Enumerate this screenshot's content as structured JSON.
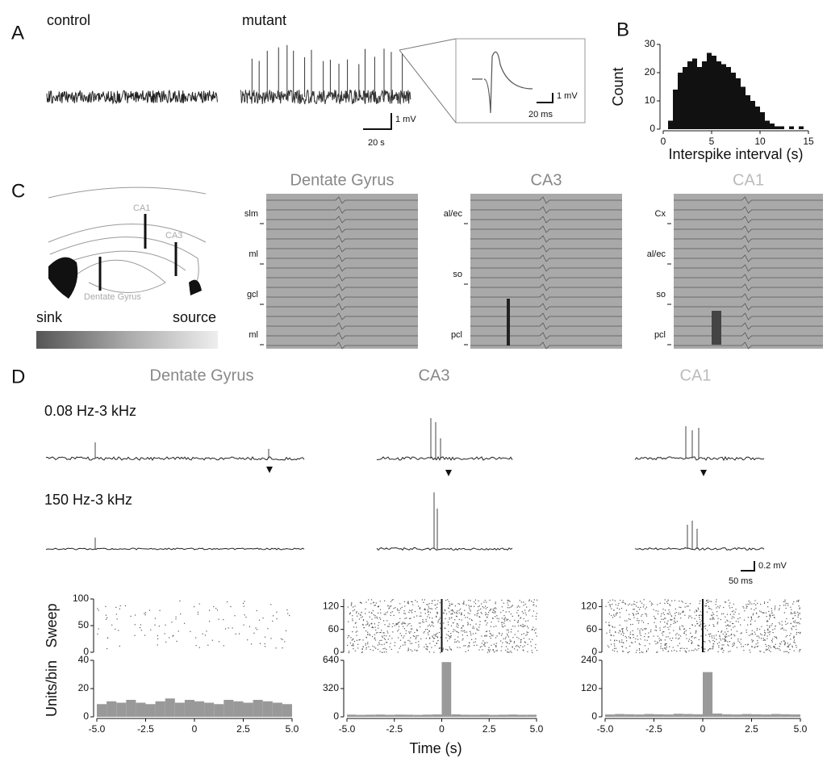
{
  "figure": {
    "A": {
      "label": "A",
      "control": "control",
      "mutant": "mutant",
      "scale_y": "1 mV",
      "scale_x": "20 s",
      "inset_y": "1 mV",
      "inset_x": "20 ms"
    },
    "B": {
      "label": "B"
    },
    "C": {
      "label": "C",
      "regions": [
        "CA1",
        "CA3",
        "Dentate Gyrus"
      ],
      "sink": "sink",
      "source": "source",
      "panels": [
        {
          "title": "Dentate Gyrus",
          "layers": [
            "slm",
            "ml",
            "gcl",
            "ml"
          ]
        },
        {
          "title": "CA3",
          "layers": [
            "al/ec",
            "so",
            "pcl"
          ]
        },
        {
          "title": "CA1",
          "layers": [
            "Cx",
            "al/ec",
            "so",
            "pcl"
          ]
        }
      ]
    },
    "D": {
      "label": "D",
      "titles": [
        "Dentate Gyrus",
        "CA3",
        "CA1"
      ],
      "band1": "0.08 Hz-3 kHz",
      "band2": "150 Hz-3 kHz",
      "scale_y": "0.2 mV",
      "scale_x": "50 ms",
      "xlabel": "Time (s)"
    }
  },
  "chart_data": [
    {
      "type": "histogram",
      "xlabel": "Interspike interval (s)",
      "ylabel": "Count",
      "color": "#111111",
      "bins": [
        0,
        0.5,
        1,
        1.5,
        2,
        2.5,
        3,
        3.5,
        4,
        4.5,
        5,
        5.5,
        6,
        6.5,
        7,
        7.5,
        8,
        8.5,
        9,
        9.5,
        10,
        10.5,
        11,
        11.5,
        12,
        12.5,
        13,
        13.5,
        14,
        14.5,
        15
      ],
      "values": [
        0,
        3,
        14,
        20,
        22,
        24,
        25,
        22,
        24,
        27,
        26,
        24,
        23,
        22,
        20,
        18,
        15,
        12,
        10,
        8,
        6,
        3,
        2,
        1,
        1,
        0,
        1,
        0,
        1,
        0
      ],
      "xlim": [
        0,
        15
      ],
      "xticks": [
        0,
        5,
        10,
        15
      ],
      "ylim": [
        0,
        30
      ],
      "yticks": [
        0,
        10,
        20,
        30
      ]
    },
    {
      "type": "raster",
      "ylabel": "Sweep",
      "xlim": [
        -5,
        5
      ],
      "ylim": [
        0,
        100
      ],
      "yticks": [
        0,
        50,
        100
      ]
    },
    {
      "type": "raster",
      "xlim": [
        -5,
        5
      ],
      "ylim": [
        0,
        140
      ],
      "yticks": [
        0,
        60,
        120
      ]
    },
    {
      "type": "raster",
      "xlim": [
        -5,
        5
      ],
      "ylim": [
        0,
        140
      ],
      "yticks": [
        0,
        60,
        120
      ]
    },
    {
      "type": "histogram",
      "ylabel": "Units/bin",
      "color": "#999999",
      "bins": [
        -5,
        -4.5,
        -4,
        -3.5,
        -3,
        -2.5,
        -2,
        -1.5,
        -1,
        -0.5,
        0,
        0.5,
        1,
        1.5,
        2,
        2.5,
        3,
        3.5,
        4,
        4.5,
        5
      ],
      "values": [
        9,
        11,
        10,
        12,
        10,
        9,
        11,
        13,
        10,
        12,
        11,
        10,
        9,
        12,
        11,
        10,
        12,
        11,
        10,
        9
      ],
      "xlim": [
        -5,
        5
      ],
      "xticks": [
        {
          "value": -5,
          "label": "-5.0"
        },
        -2.5,
        0,
        2.5,
        {
          "value": 5,
          "label": "5.0"
        }
      ],
      "ylim": [
        0,
        40
      ],
      "yticks": [
        0,
        20,
        40
      ]
    },
    {
      "type": "histogram",
      "color": "#999999",
      "bins": [
        -5,
        -4.5,
        -4,
        -3.5,
        -3,
        -2.5,
        -2,
        -1.5,
        -1,
        -0.5,
        0,
        0.5,
        1,
        1.5,
        2,
        2.5,
        3,
        3.5,
        4,
        4.5,
        5
      ],
      "values": [
        25,
        22,
        24,
        26,
        23,
        25,
        24,
        22,
        25,
        27,
        620,
        28,
        24,
        23,
        25,
        22,
        24,
        26,
        23,
        24
      ],
      "xlim": [
        -5,
        5
      ],
      "xticks": [
        {
          "value": -5,
          "label": "-5.0"
        },
        -2.5,
        0,
        2.5,
        {
          "value": 5,
          "label": "5.0"
        }
      ],
      "ylim": [
        0,
        640
      ],
      "yticks": [
        0,
        320,
        640
      ]
    },
    {
      "type": "histogram",
      "color": "#999999",
      "bins": [
        -5,
        -4.5,
        -4,
        -3.5,
        -3,
        -2.5,
        -2,
        -1.5,
        -1,
        -0.5,
        0,
        0.5,
        1,
        1.5,
        2,
        2.5,
        3,
        3.5,
        4,
        4.5,
        5
      ],
      "values": [
        10,
        12,
        11,
        10,
        12,
        11,
        10,
        13,
        12,
        11,
        190,
        14,
        11,
        10,
        12,
        11,
        10,
        12,
        11,
        10
      ],
      "xlim": [
        -5,
        5
      ],
      "xticks": [
        {
          "value": -5,
          "label": "-5.0"
        },
        -2.5,
        0,
        2.5,
        {
          "value": 5,
          "label": "5.0"
        }
      ],
      "ylim": [
        0,
        240
      ],
      "yticks": [
        0,
        120,
        240
      ]
    }
  ]
}
